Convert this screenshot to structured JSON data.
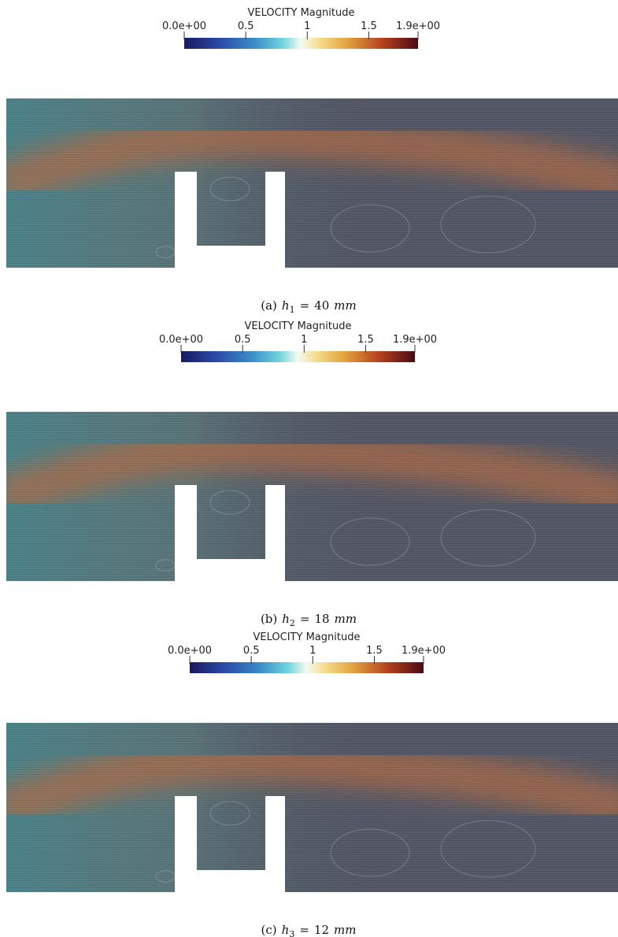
{
  "panels": [
    {
      "colorbar": {
        "title": "VELOCITY Magnitude",
        "range": [
          0,
          1.9
        ],
        "ticks": [
          {
            "value": 0,
            "label": "0.0e+00"
          },
          0.5,
          1,
          1.5,
          {
            "value": 1.9,
            "label": "1.9e+00"
          }
        ]
      },
      "caption": {
        "tag": "(a)",
        "symbol": "h",
        "subscript": "1",
        "relation": "=",
        "value": "40",
        "unit": "mm"
      }
    },
    {
      "colorbar": {
        "title": "VELOCITY Magnitude",
        "range": [
          0,
          1.9
        ],
        "ticks": [
          {
            "value": 0,
            "label": "0.0e+00"
          },
          0.5,
          1,
          1.5,
          {
            "value": 1.9,
            "label": "1.9e+00"
          }
        ]
      },
      "caption": {
        "tag": "(b)",
        "symbol": "h",
        "subscript": "2",
        "relation": "=",
        "value": "18",
        "unit": "mm"
      }
    },
    {
      "colorbar": {
        "title": "VELOCITY Magnitude",
        "range": [
          0,
          1.9
        ],
        "ticks": [
          {
            "value": 0,
            "label": "0.0e+00"
          },
          0.5,
          1,
          1.5,
          {
            "value": 1.9,
            "label": "1.9e+00"
          }
        ]
      },
      "caption": {
        "tag": "(c)",
        "symbol": "h",
        "subscript": "3",
        "relation": "=",
        "value": "12",
        "unit": "mm"
      }
    }
  ]
}
